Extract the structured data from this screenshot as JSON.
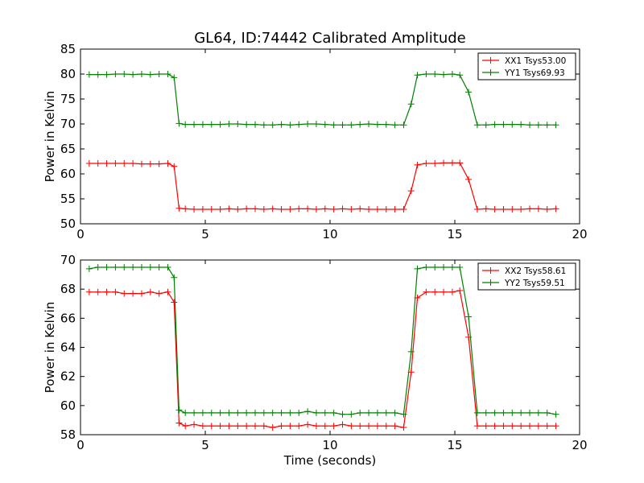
{
  "figure": {
    "title": "GL64, ID:74442 Calibrated Amplitude"
  },
  "chart_data": [
    {
      "type": "line",
      "title": "GL64, ID:74442 Calibrated Amplitude",
      "xlabel": "",
      "ylabel": "Power in Kelvin",
      "xlim": [
        0,
        20
      ],
      "ylim": [
        50,
        85
      ],
      "xticks": [
        "0",
        "5",
        "10",
        "15",
        "20"
      ],
      "yticks": [
        "50",
        "55",
        "60",
        "65",
        "70",
        "75",
        "80",
        "85"
      ],
      "grid": false,
      "legend_position": "top-right",
      "x": [
        0.35,
        0.7,
        1.05,
        1.4,
        1.75,
        2.1,
        2.45,
        2.8,
        3.15,
        3.5,
        3.75,
        3.95,
        4.2,
        4.55,
        4.9,
        5.25,
        5.6,
        5.95,
        6.3,
        6.65,
        7.0,
        7.35,
        7.7,
        8.05,
        8.4,
        8.75,
        9.1,
        9.45,
        9.8,
        10.15,
        10.5,
        10.85,
        11.2,
        11.55,
        11.9,
        12.25,
        12.6,
        12.95,
        13.25,
        13.5,
        13.85,
        14.2,
        14.55,
        14.9,
        15.2,
        15.55,
        15.9,
        16.25,
        16.6,
        16.95,
        17.3,
        17.65,
        18.0,
        18.35,
        18.7,
        19.05
      ],
      "series": [
        {
          "name": "XX1 Tsys53.00",
          "color": "#ff0000",
          "values": [
            62.1,
            62.1,
            62.1,
            62.1,
            62.1,
            62.1,
            62.0,
            62.0,
            62.0,
            62.1,
            61.5,
            53.1,
            53.0,
            52.9,
            52.9,
            52.9,
            52.9,
            53.0,
            52.9,
            53.0,
            53.0,
            52.9,
            53.0,
            52.9,
            52.9,
            53.0,
            53.0,
            52.9,
            53.0,
            52.9,
            53.0,
            52.9,
            53.0,
            52.9,
            52.9,
            52.9,
            52.9,
            52.9,
            56.6,
            61.8,
            62.1,
            62.1,
            62.2,
            62.2,
            62.2,
            58.9,
            52.9,
            53.0,
            52.9,
            52.9,
            52.9,
            52.9,
            53.0,
            53.0,
            52.9,
            53.0
          ]
        },
        {
          "name": "YY1 Tsys69.93",
          "color": "#008000",
          "values": [
            79.9,
            79.9,
            79.9,
            80.0,
            80.0,
            79.9,
            80.0,
            79.9,
            80.0,
            80.0,
            79.3,
            70.1,
            69.9,
            69.9,
            69.9,
            69.9,
            69.9,
            70.0,
            70.0,
            69.9,
            69.9,
            69.8,
            69.8,
            69.9,
            69.8,
            69.9,
            70.0,
            70.0,
            69.9,
            69.8,
            69.8,
            69.8,
            69.9,
            70.0,
            69.9,
            69.9,
            69.8,
            69.8,
            74.0,
            79.8,
            80.0,
            80.0,
            79.9,
            80.0,
            79.8,
            76.4,
            69.8,
            69.8,
            69.9,
            69.9,
            69.9,
            69.9,
            69.8,
            69.8,
            69.8,
            69.8
          ]
        }
      ]
    },
    {
      "type": "line",
      "title": "",
      "xlabel": "Time (seconds)",
      "ylabel": "Power in Kelvin",
      "xlim": [
        0,
        20
      ],
      "ylim": [
        58,
        70
      ],
      "xticks": [
        "0",
        "5",
        "10",
        "15",
        "20"
      ],
      "yticks": [
        "58",
        "60",
        "62",
        "64",
        "66",
        "68",
        "70"
      ],
      "grid": false,
      "legend_position": "top-right",
      "x": [
        0.35,
        0.7,
        1.05,
        1.4,
        1.75,
        2.1,
        2.45,
        2.8,
        3.15,
        3.5,
        3.75,
        3.95,
        4.2,
        4.55,
        4.9,
        5.25,
        5.6,
        5.95,
        6.3,
        6.65,
        7.0,
        7.35,
        7.7,
        8.05,
        8.4,
        8.75,
        9.1,
        9.45,
        9.8,
        10.15,
        10.5,
        10.85,
        11.2,
        11.55,
        11.9,
        12.25,
        12.6,
        12.95,
        13.25,
        13.5,
        13.85,
        14.2,
        14.55,
        14.9,
        15.2,
        15.55,
        15.9,
        16.25,
        16.6,
        16.95,
        17.3,
        17.65,
        18.0,
        18.35,
        18.7,
        19.05
      ],
      "series": [
        {
          "name": "XX2 Tsys58.61",
          "color": "#ff0000",
          "values": [
            67.8,
            67.8,
            67.8,
            67.8,
            67.7,
            67.7,
            67.7,
            67.8,
            67.7,
            67.8,
            67.1,
            58.8,
            58.6,
            58.7,
            58.6,
            58.6,
            58.6,
            58.6,
            58.6,
            58.6,
            58.6,
            58.6,
            58.5,
            58.6,
            58.6,
            58.6,
            58.7,
            58.6,
            58.6,
            58.6,
            58.7,
            58.6,
            58.6,
            58.6,
            58.6,
            58.6,
            58.6,
            58.5,
            62.3,
            67.4,
            67.8,
            67.8,
            67.8,
            67.8,
            67.9,
            64.7,
            58.6,
            58.6,
            58.6,
            58.6,
            58.6,
            58.6,
            58.6,
            58.6,
            58.6,
            58.6
          ]
        },
        {
          "name": "YY2 Tsys59.51",
          "color": "#008000",
          "values": [
            69.4,
            69.5,
            69.5,
            69.5,
            69.5,
            69.5,
            69.5,
            69.5,
            69.5,
            69.5,
            68.8,
            59.7,
            59.5,
            59.5,
            59.5,
            59.5,
            59.5,
            59.5,
            59.5,
            59.5,
            59.5,
            59.5,
            59.5,
            59.5,
            59.5,
            59.5,
            59.6,
            59.5,
            59.5,
            59.5,
            59.4,
            59.4,
            59.5,
            59.5,
            59.5,
            59.5,
            59.5,
            59.4,
            63.7,
            69.4,
            69.5,
            69.5,
            69.5,
            69.5,
            69.5,
            66.1,
            59.5,
            59.5,
            59.5,
            59.5,
            59.5,
            59.5,
            59.5,
            59.5,
            59.5,
            59.4
          ]
        }
      ]
    }
  ]
}
